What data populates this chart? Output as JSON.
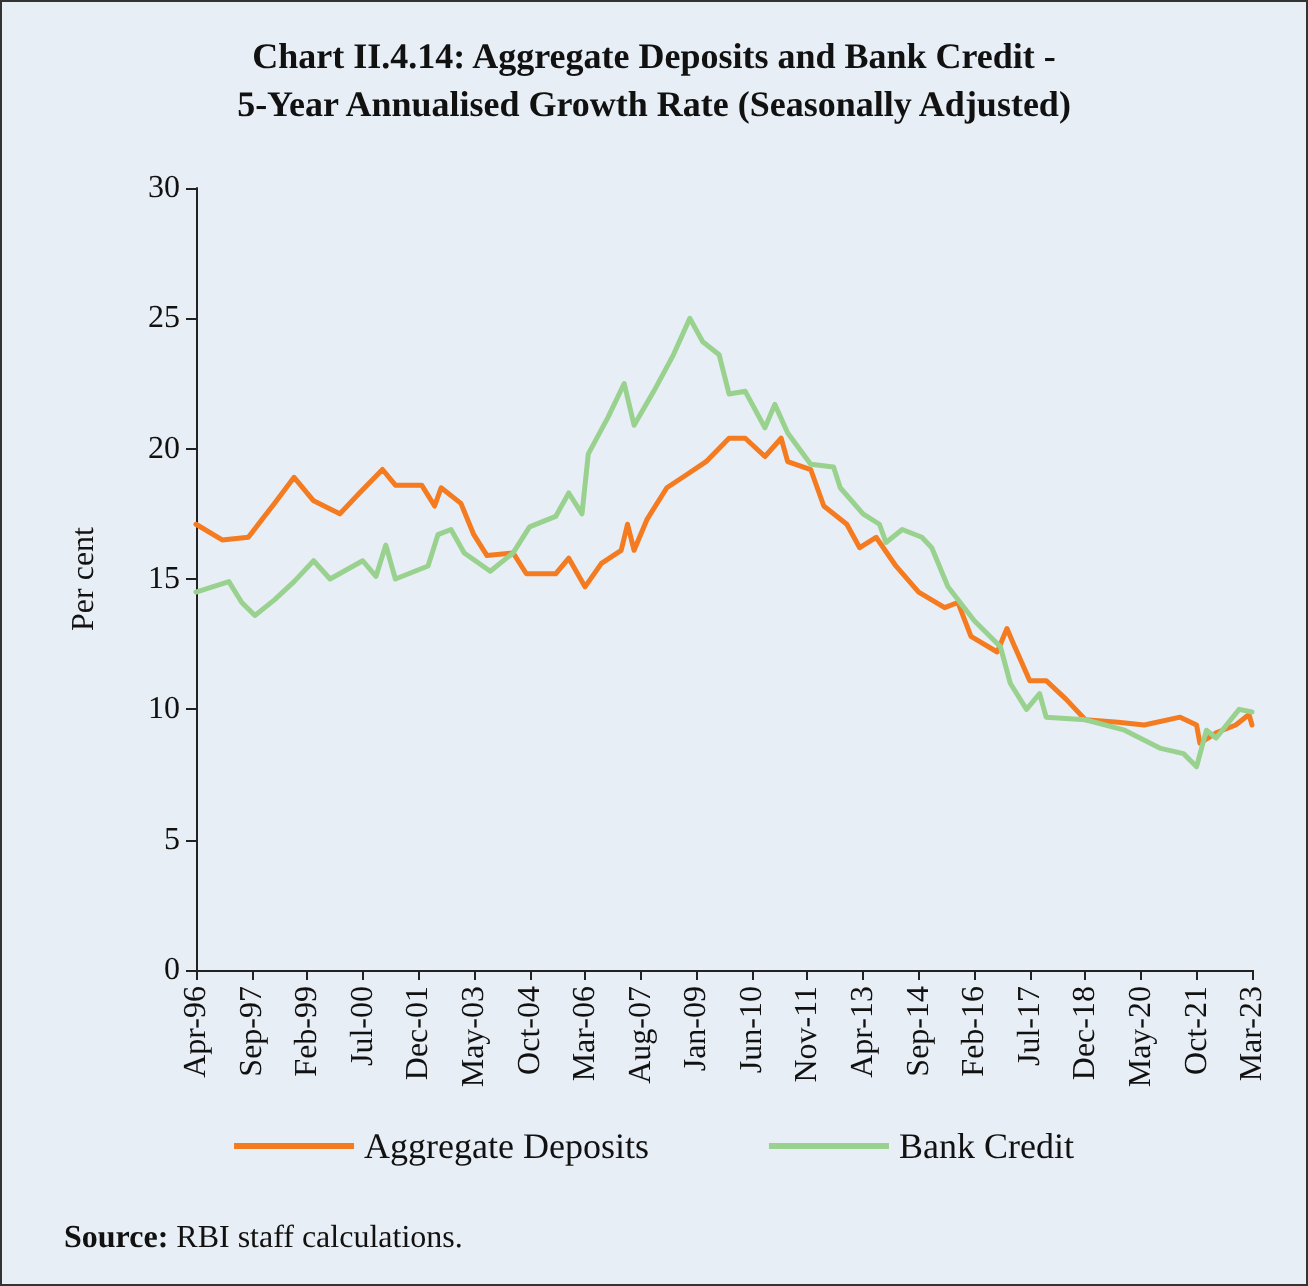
{
  "chart_data": {
    "type": "line",
    "title": "Chart II.4.14: Aggregate Deposits and Bank Credit -\n5-Year Annualised Growth Rate (Seasonally Adjusted)",
    "ylabel": "Per cent",
    "annotations": [
      "Source: RBI staff calculations."
    ],
    "series": [
      {
        "name": "Aggregate Deposits",
        "color": "#f47b20",
        "x": [
          "1996-04",
          "1996-12",
          "1997-08",
          "1998-04",
          "1998-10",
          "1999-04",
          "1999-12",
          "2000-06",
          "2001-01",
          "2001-05",
          "2002-01",
          "2002-05",
          "2002-07",
          "2003-01",
          "2003-05",
          "2003-09",
          "2004-05",
          "2004-09",
          "2005-06",
          "2005-10",
          "2006-03",
          "2006-08",
          "2007-02",
          "2007-04",
          "2007-06",
          "2007-10",
          "2008-04",
          "2008-10",
          "2009-04",
          "2009-11",
          "2010-04",
          "2010-10",
          "2011-03",
          "2011-05",
          "2011-12",
          "2012-04",
          "2012-11",
          "2013-03",
          "2013-08",
          "2014-02",
          "2014-09",
          "2015-05",
          "2015-09",
          "2016-01",
          "2016-09",
          "2016-12",
          "2017-02",
          "2017-07",
          "2017-12",
          "2018-06",
          "2018-12",
          "2019-10",
          "2020-06",
          "2021-05",
          "2021-10",
          "2021-11",
          "2022-04",
          "2022-10",
          "2023-02",
          "2023-03"
        ],
        "values": [
          17.1,
          16.5,
          16.6,
          17.9,
          18.9,
          18.0,
          17.5,
          18.3,
          19.2,
          18.6,
          18.6,
          17.8,
          18.5,
          17.9,
          16.7,
          15.9,
          16.0,
          15.2,
          15.2,
          15.8,
          14.7,
          15.6,
          16.1,
          17.1,
          16.1,
          17.3,
          18.5,
          19.0,
          19.5,
          20.4,
          20.4,
          19.7,
          20.4,
          19.5,
          19.2,
          17.8,
          17.1,
          16.2,
          16.6,
          15.5,
          14.5,
          13.9,
          14.1,
          12.8,
          12.2,
          13.1,
          12.5,
          11.1,
          11.1,
          10.4,
          9.6,
          9.5,
          9.4,
          9.7,
          9.4,
          8.7,
          9.1,
          9.4,
          9.8,
          9.4
        ]
      },
      {
        "name": "Bank Credit",
        "color": "#99d18f",
        "x": [
          "1996-04",
          "1997-02",
          "1997-06",
          "1997-10",
          "1998-04",
          "1998-10",
          "1999-04",
          "1999-09",
          "2000-07",
          "2000-11",
          "2001-02",
          "2001-05",
          "2002-03",
          "2002-06",
          "2002-10",
          "2003-02",
          "2003-10",
          "2004-05",
          "2004-10",
          "2005-06",
          "2005-10",
          "2006-02",
          "2006-04",
          "2006-10",
          "2007-03",
          "2007-06",
          "2007-12",
          "2008-06",
          "2008-11",
          "2009-03",
          "2009-08",
          "2009-11",
          "2010-04",
          "2010-10",
          "2011-01",
          "2011-05",
          "2011-12",
          "2012-07",
          "2012-09",
          "2013-04",
          "2013-09",
          "2013-11",
          "2014-04",
          "2014-10",
          "2015-01",
          "2015-06",
          "2016-02",
          "2016-10",
          "2017-01",
          "2017-06",
          "2017-10",
          "2017-12",
          "2018-12",
          "2019-12",
          "2020-11",
          "2021-06",
          "2021-10",
          "2022-01",
          "2022-04",
          "2022-11",
          "2023-03"
        ],
        "values": [
          14.5,
          14.9,
          14.1,
          13.6,
          14.2,
          14.9,
          15.7,
          15.0,
          15.7,
          15.1,
          16.3,
          15.0,
          15.5,
          16.7,
          16.9,
          16.0,
          15.3,
          16.0,
          17.0,
          17.4,
          18.3,
          17.5,
          19.8,
          21.2,
          22.5,
          20.9,
          22.2,
          23.6,
          25.0,
          24.1,
          23.6,
          22.1,
          22.2,
          20.8,
          21.7,
          20.6,
          19.4,
          19.3,
          18.5,
          17.5,
          17.1,
          16.4,
          16.9,
          16.6,
          16.2,
          14.7,
          13.4,
          12.4,
          11.0,
          10.0,
          10.6,
          9.7,
          9.6,
          9.2,
          8.5,
          8.3,
          7.8,
          9.2,
          8.9,
          10.0,
          9.9
        ]
      }
    ],
    "xlim": [
      "1996-04",
      "2023-03"
    ],
    "xticks": [
      {
        "value": "1996-04",
        "label": "Apr-96"
      },
      {
        "value": "1997-09",
        "label": "Sep-97"
      },
      {
        "value": "1999-02",
        "label": "Feb-99"
      },
      {
        "value": "2000-07",
        "label": "Jul-00"
      },
      {
        "value": "2001-12",
        "label": "Dec-01"
      },
      {
        "value": "2003-05",
        "label": "May-03"
      },
      {
        "value": "2004-10",
        "label": "Oct-04"
      },
      {
        "value": "2006-03",
        "label": "Mar-06"
      },
      {
        "value": "2007-08",
        "label": "Aug-07"
      },
      {
        "value": "2009-01",
        "label": "Jan-09"
      },
      {
        "value": "2010-06",
        "label": "Jun-10"
      },
      {
        "value": "2011-11",
        "label": "Nov-11"
      },
      {
        "value": "2013-04",
        "label": "Apr-13"
      },
      {
        "value": "2014-09",
        "label": "Sep-14"
      },
      {
        "value": "2016-02",
        "label": "Feb-16"
      },
      {
        "value": "2017-07",
        "label": "Jul-17"
      },
      {
        "value": "2018-12",
        "label": "Dec-18"
      },
      {
        "value": "2020-05",
        "label": "May-20"
      },
      {
        "value": "2021-10",
        "label": "Oct-21"
      },
      {
        "value": "2023-03",
        "label": "Mar-23"
      }
    ],
    "ylim": [
      0,
      30
    ],
    "yticks": [
      0,
      5,
      10,
      15,
      20,
      25,
      30
    ],
    "grid": false,
    "legend": "bottom",
    "marker": "none",
    "line_style": "solid"
  }
}
